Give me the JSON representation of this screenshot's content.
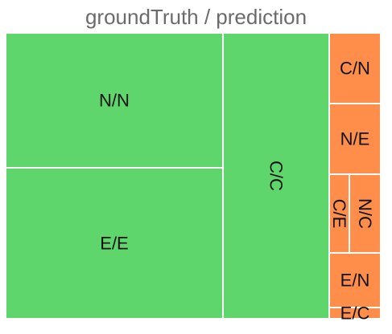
{
  "chart_data": {
    "type": "treemap",
    "title": "groundTruth / prediction",
    "colors": {
      "correct": "#5ed66c",
      "incorrect": "#ff8e4a",
      "border": "#ffffff"
    },
    "cells": [
      {
        "label": "N/N",
        "group": "correct",
        "value": 95
      },
      {
        "label": "E/E",
        "group": "correct",
        "value": 91
      },
      {
        "label": "C/C",
        "group": "correct",
        "value": 97
      },
      {
        "label": "C/N",
        "group": "incorrect",
        "value": 9.8
      },
      {
        "label": "N/E",
        "group": "incorrect",
        "value": 11
      },
      {
        "label": "C/E",
        "group": "incorrect",
        "value": 2.9
      },
      {
        "label": "N/C",
        "group": "incorrect",
        "value": 4.5
      },
      {
        "label": "E/N",
        "group": "incorrect",
        "value": 8.9
      },
      {
        "label": "E/C",
        "group": "incorrect",
        "value": 1.6
      }
    ]
  }
}
